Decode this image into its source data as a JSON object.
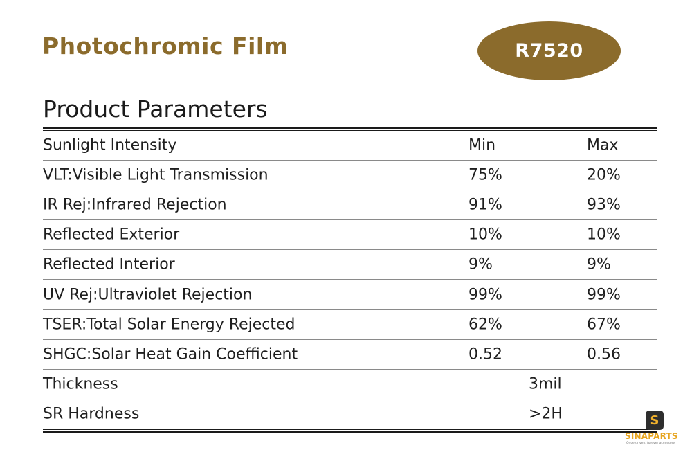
{
  "header": {
    "title": "Photochromic Film",
    "model": "R7520"
  },
  "section": {
    "title": "Product Parameters"
  },
  "table": {
    "header": {
      "label": "Sunlight Intensity",
      "min": "Min",
      "max": "Max"
    },
    "rows": [
      {
        "label": "VLT:Visible Light Transmission",
        "min": "75%",
        "max": "20%"
      },
      {
        "label": "IR Rej:Infrared Rejection",
        "min": "91%",
        "max": "93%"
      },
      {
        "label": "Reflected Exterior",
        "min": "10%",
        "max": "10%"
      },
      {
        "label": "Reflected Interior",
        "min": "9%",
        "max": "9%"
      },
      {
        "label": "UV Rej:Ultraviolet Rejection",
        "min": "99%",
        "max": "99%"
      },
      {
        "label": "TSER:Total Solar Energy Rejected",
        "min": "62%",
        "max": "67%"
      },
      {
        "label": "SHGC:Solar Heat Gain Coefficient",
        "min": "0.52",
        "max": "0.56"
      }
    ],
    "single_rows": [
      {
        "label": "Thickness",
        "value": "3mil"
      },
      {
        "label": "SR Hardness",
        "value": ">2H"
      }
    ]
  },
  "brand": {
    "icon_glyph": "S",
    "name": "SINAPARTS",
    "tagline": "Once driven, forever accessory"
  },
  "colors": {
    "accent": "#8b6b2c",
    "brand": "#e7a51f"
  }
}
